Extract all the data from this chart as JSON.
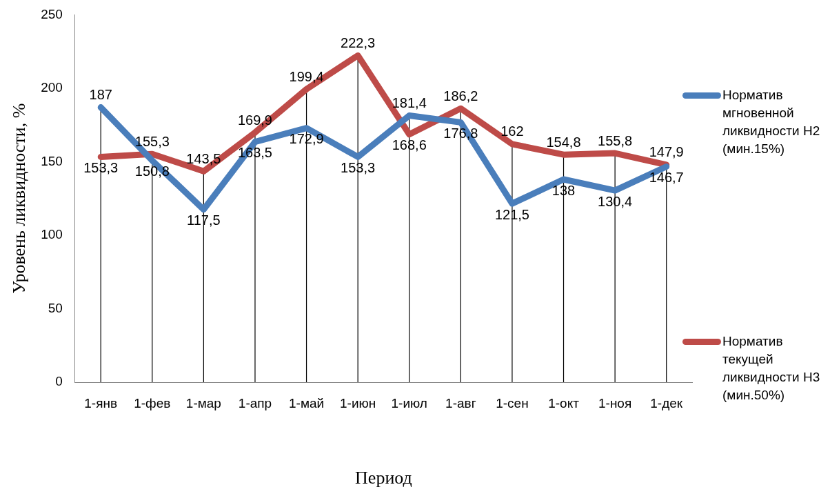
{
  "chart_data": {
    "type": "line",
    "xlabel": "Период",
    "ylabel": "Уровень ликвидности, %",
    "categories": [
      "1-янв",
      "1-фев",
      "1-мар",
      "1-апр",
      "1-май",
      "1-июн",
      "1-июл",
      "1-авг",
      "1-сен",
      "1-окт",
      "1-ноя",
      "1-дек"
    ],
    "series": [
      {
        "name": "Норматив мгновенной ликвидности Н2 (мин.15%)",
        "color": "#4a7ebb",
        "values": [
          187,
          150.8,
          117.5,
          163.5,
          172.9,
          153.3,
          181.4,
          176.8,
          121.5,
          138,
          130.4,
          146.7
        ],
        "value_labels": [
          "187",
          "150,8",
          "117,5",
          "163,5",
          "172,9",
          "153,3",
          "181,4",
          "176,8",
          "121,5",
          "138",
          "130,4",
          "146,7"
        ]
      },
      {
        "name": "Норматив текущей ликвидности Н3 (мин.50%)",
        "color": "#be4b48",
        "values": [
          153.3,
          155.3,
          143.5,
          169.9,
          199.4,
          222.3,
          168.6,
          186.2,
          162,
          154.8,
          155.8,
          147.9
        ],
        "value_labels": [
          "153,3",
          "155,3",
          "143,5",
          "169,9",
          "199,4",
          "222,3",
          "168,6",
          "186,2",
          "162",
          "154,8",
          "155,8",
          "147,9"
        ]
      }
    ],
    "ylim": [
      0,
      250
    ],
    "yticks": [
      0,
      50,
      100,
      150,
      200,
      250
    ],
    "grid": "x",
    "legend": "right",
    "marker": "none"
  }
}
